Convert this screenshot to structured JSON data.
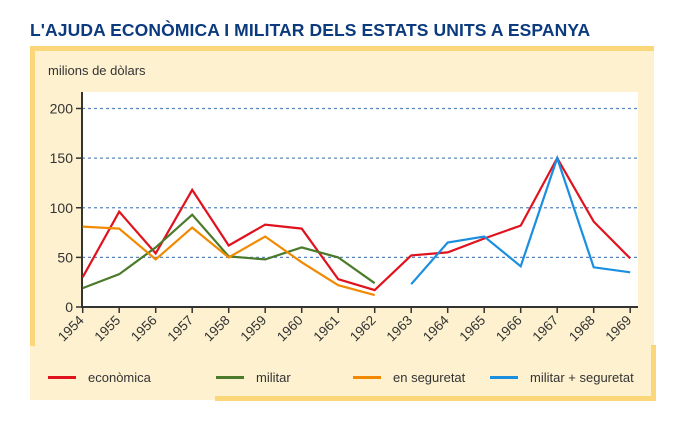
{
  "title": "L'AJUDA ECONÒMICA I MILITAR DELS ESTATS UNITS A ESPANYA",
  "chart_data": {
    "type": "line",
    "title": "L'AJUDA ECONÒMICA I MILITAR DELS ESTATS UNITS A ESPANYA",
    "ylabel": "milions de dòlars",
    "xlabel": "",
    "ylim": [
      0,
      200
    ],
    "yticks": [
      "0",
      "50",
      "100",
      "150",
      "200"
    ],
    "x": [
      "1954",
      "1955",
      "1956",
      "1957",
      "1958",
      "1959",
      "1960",
      "1961",
      "1962",
      "1963",
      "1964",
      "1965",
      "1966",
      "1967",
      "1968",
      "1969"
    ],
    "grid": "horizontal dashed",
    "legend_position": "bottom",
    "series": [
      {
        "name": "econòmica",
        "color": "#e0121d",
        "values": [
          30,
          96,
          54,
          118,
          62,
          83,
          79,
          28,
          17,
          52,
          55,
          69,
          82,
          150,
          86,
          49
        ]
      },
      {
        "name": "militar",
        "color": "#4a7a2a",
        "values": [
          19,
          33,
          60,
          93,
          51,
          48,
          60,
          50,
          24,
          null,
          null,
          null,
          null,
          null,
          null,
          null
        ]
      },
      {
        "name": "en seguretat",
        "color": "#f18a00",
        "values": [
          81,
          79,
          48,
          80,
          50,
          71,
          45,
          22,
          12,
          null,
          null,
          null,
          null,
          null,
          null,
          null
        ]
      },
      {
        "name": "militar + seguretat",
        "color": "#1a8fe0",
        "values": [
          null,
          null,
          null,
          null,
          null,
          null,
          null,
          null,
          null,
          23,
          65,
          71,
          41,
          150,
          40,
          35
        ]
      }
    ]
  }
}
